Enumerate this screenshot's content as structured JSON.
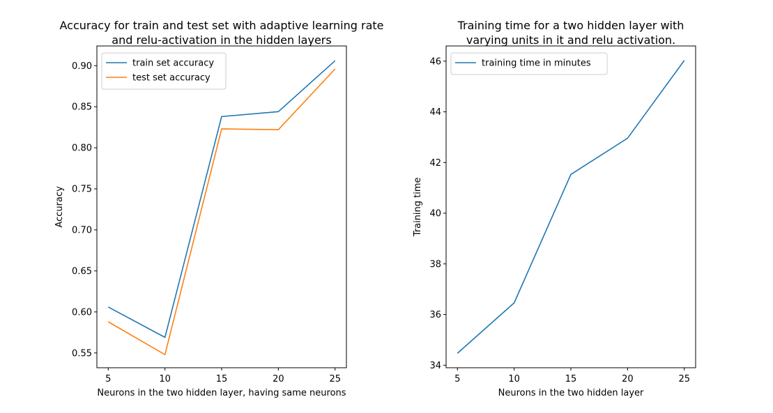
{
  "chart_data": [
    {
      "type": "line",
      "title": "Accuracy for train and test set with adaptive learning rate\nand relu-activation in the hidden layers",
      "xlabel": "Neurons in the two hidden layer, having same neurons",
      "ylabel": "Accuracy",
      "x": [
        5,
        10,
        15,
        20,
        25
      ],
      "xticks": [
        5,
        10,
        15,
        20,
        25
      ],
      "yticks": [
        0.55,
        0.6,
        0.65,
        0.7,
        0.75,
        0.8,
        0.85,
        0.9
      ],
      "xlim": [
        4,
        26
      ],
      "ylim": [
        0.532,
        0.924
      ],
      "legend_position": "top-left",
      "grid": false,
      "series": [
        {
          "name": "train set accuracy",
          "color": "#1f77b4",
          "values": [
            0.606,
            0.569,
            0.838,
            0.844,
            0.906
          ]
        },
        {
          "name": "test set accuracy",
          "color": "#ff7f0e",
          "values": [
            0.588,
            0.548,
            0.823,
            0.822,
            0.896
          ]
        }
      ]
    },
    {
      "type": "line",
      "title": "Training time for a two hidden layer with\nvarying units in it and relu activation.",
      "xlabel": "Neurons in the two hidden layer",
      "ylabel": "Training time",
      "x": [
        5,
        10,
        15,
        20,
        25
      ],
      "xticks": [
        5,
        10,
        15,
        20,
        25
      ],
      "yticks": [
        34,
        36,
        38,
        40,
        42,
        44,
        46
      ],
      "xlim": [
        4,
        26
      ],
      "ylim": [
        33.9,
        46.6
      ],
      "legend_position": "top-left",
      "grid": false,
      "series": [
        {
          "name": "training time in minutes",
          "color": "#1f77b4",
          "values": [
            34.47,
            36.46,
            41.53,
            42.96,
            46.03
          ]
        }
      ]
    }
  ]
}
